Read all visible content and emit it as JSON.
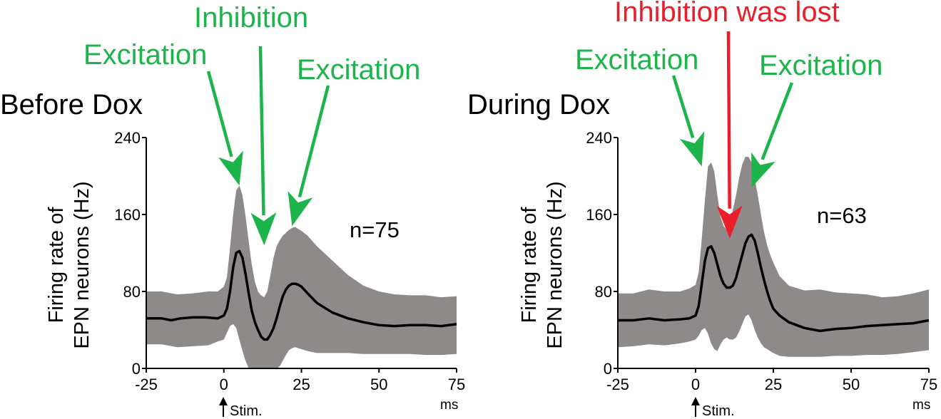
{
  "colors": {
    "excitation": "#1db44b",
    "inhibition_lost": "#ea1f2a",
    "band": "#8e8a89",
    "mean_line": "#000000",
    "axis": "#000000"
  },
  "chart_data": [
    {
      "type": "line",
      "title": "Before Dox",
      "ylabel": [
        "Firing rate of",
        "EPN neurons (Hz)"
      ],
      "x_unit": "ms",
      "stim_label": "Stim.",
      "n_label": "n=75",
      "xlim": [
        -25,
        75
      ],
      "ylim": [
        0,
        240
      ],
      "xticks": [
        -25,
        0,
        25,
        50,
        75
      ],
      "yticks": [
        0,
        80,
        160,
        240
      ],
      "xtick_labels": [
        "-25",
        "0",
        "25",
        "50",
        "75"
      ],
      "ytick_labels": [
        "0",
        "80",
        "160",
        "240"
      ],
      "annotations": [
        {
          "text": "Excitation",
          "color": "excitation",
          "points_to": {
            "x": 5,
            "y": 190
          }
        },
        {
          "text": "Inhibition",
          "color": "excitation",
          "points_to": {
            "x": 13,
            "y": 128
          }
        },
        {
          "text": "Excitation",
          "color": "excitation",
          "points_to": {
            "x": 22,
            "y": 148
          }
        }
      ],
      "series": [
        {
          "role": "mean",
          "x": [
            -25,
            -20,
            -17,
            -14,
            -10,
            -6,
            -2,
            0,
            1,
            2,
            3,
            4,
            5,
            6,
            7,
            8,
            9,
            10,
            11,
            12,
            13,
            14,
            15,
            16,
            17,
            18,
            19,
            20,
            21,
            22,
            23,
            24,
            25,
            27,
            30,
            35,
            40,
            45,
            50,
            55,
            60,
            65,
            70,
            75
          ],
          "y": [
            52,
            52,
            50,
            52,
            53,
            53,
            52,
            55,
            62,
            80,
            105,
            120,
            122,
            115,
            98,
            78,
            60,
            48,
            40,
            33,
            30,
            30,
            35,
            42,
            52,
            64,
            75,
            82,
            86,
            88,
            88,
            87,
            85,
            78,
            68,
            58,
            52,
            48,
            45,
            44,
            45,
            45,
            44,
            46
          ]
        },
        {
          "role": "band",
          "x": [
            -25,
            -20,
            -15,
            -10,
            -5,
            -2,
            0,
            1,
            2,
            3,
            4,
            5,
            6,
            7,
            8,
            9,
            10,
            11,
            12,
            13,
            14,
            15,
            16,
            17,
            18,
            19,
            20,
            21,
            22,
            23,
            24,
            25,
            27,
            30,
            35,
            40,
            45,
            50,
            55,
            60,
            65,
            70,
            75
          ],
          "upper": [
            80,
            80,
            77,
            78,
            80,
            80,
            85,
            95,
            125,
            160,
            185,
            190,
            180,
            158,
            132,
            108,
            90,
            80,
            76,
            74,
            80,
            97,
            115,
            127,
            133,
            138,
            141,
            144,
            146,
            147,
            145,
            143,
            138,
            127,
            112,
            97,
            86,
            80,
            77,
            76,
            76,
            74,
            75
          ],
          "lower": [
            25,
            25,
            22,
            23,
            24,
            28,
            30,
            37,
            44,
            46,
            42,
            30,
            18,
            8,
            0,
            0,
            0,
            0,
            0,
            0,
            0,
            0,
            0,
            0,
            2,
            8,
            14,
            19,
            21,
            22,
            21,
            20,
            18,
            16,
            16,
            16,
            15,
            15,
            15,
            15,
            14,
            14,
            15
          ]
        }
      ]
    },
    {
      "type": "line",
      "title": "During Dox",
      "ylabel": [
        "Firing rate of",
        "EPN neurons (Hz)"
      ],
      "x_unit": "ms",
      "stim_label": "Stim.",
      "n_label": "n=63",
      "xlim": [
        -25,
        75
      ],
      "ylim": [
        0,
        240
      ],
      "xticks": [
        -25,
        0,
        25,
        50,
        75
      ],
      "yticks": [
        0,
        80,
        160,
        240
      ],
      "xtick_labels": [
        "-25",
        "0",
        "25",
        "50",
        "75"
      ],
      "ytick_labels": [
        "0",
        "80",
        "160",
        "240"
      ],
      "annotations": [
        {
          "text": "Excitation",
          "color": "excitation",
          "points_to": {
            "x": 2,
            "y": 210
          }
        },
        {
          "text": "Inhibition was lost",
          "color": "inhibition_lost",
          "points_to": {
            "x": 11,
            "y": 135
          }
        },
        {
          "text": "Excitation",
          "color": "excitation",
          "points_to": {
            "x": 18,
            "y": 188
          }
        }
      ],
      "series": [
        {
          "role": "mean",
          "x": [
            -25,
            -20,
            -15,
            -10,
            -5,
            -2,
            0,
            1,
            2,
            3,
            4,
            5,
            6,
            7,
            8,
            9,
            10,
            11,
            12,
            13,
            14,
            15,
            16,
            17,
            18,
            19,
            20,
            21,
            22,
            23,
            24,
            25,
            27,
            30,
            35,
            40,
            45,
            50,
            55,
            60,
            65,
            70,
            75
          ],
          "y": [
            50,
            50,
            52,
            50,
            51,
            52,
            55,
            65,
            88,
            112,
            125,
            127,
            120,
            108,
            96,
            88,
            84,
            84,
            86,
            94,
            106,
            118,
            130,
            137,
            139,
            133,
            120,
            105,
            92,
            80,
            70,
            62,
            55,
            48,
            42,
            39,
            41,
            42,
            44,
            45,
            46,
            47,
            50
          ],
          "note_visible": false
        },
        {
          "role": "band",
          "x": [
            -25,
            -20,
            -15,
            -10,
            -5,
            -2,
            0,
            1,
            2,
            3,
            4,
            5,
            6,
            7,
            8,
            9,
            10,
            11,
            12,
            13,
            14,
            15,
            16,
            17,
            18,
            19,
            20,
            21,
            22,
            23,
            24,
            25,
            27,
            30,
            35,
            40,
            45,
            50,
            55,
            60,
            65,
            70,
            75
          ],
          "upper": [
            78,
            78,
            82,
            80,
            80,
            83,
            87,
            100,
            135,
            175,
            210,
            214,
            205,
            180,
            158,
            148,
            144,
            150,
            165,
            180,
            198,
            212,
            220,
            220,
            214,
            198,
            180,
            160,
            142,
            128,
            118,
            110,
            96,
            86,
            81,
            82,
            79,
            78,
            77,
            74,
            75,
            78,
            82
          ],
          "lower": [
            22,
            23,
            25,
            24,
            26,
            28,
            30,
            34,
            40,
            42,
            36,
            26,
            20,
            18,
            25,
            30,
            32,
            30,
            30,
            32,
            38,
            46,
            54,
            56,
            50,
            40,
            32,
            26,
            22,
            20,
            18,
            16,
            13,
            12,
            12,
            12,
            13,
            13,
            14,
            14,
            15,
            17,
            19
          ]
        }
      ]
    }
  ]
}
